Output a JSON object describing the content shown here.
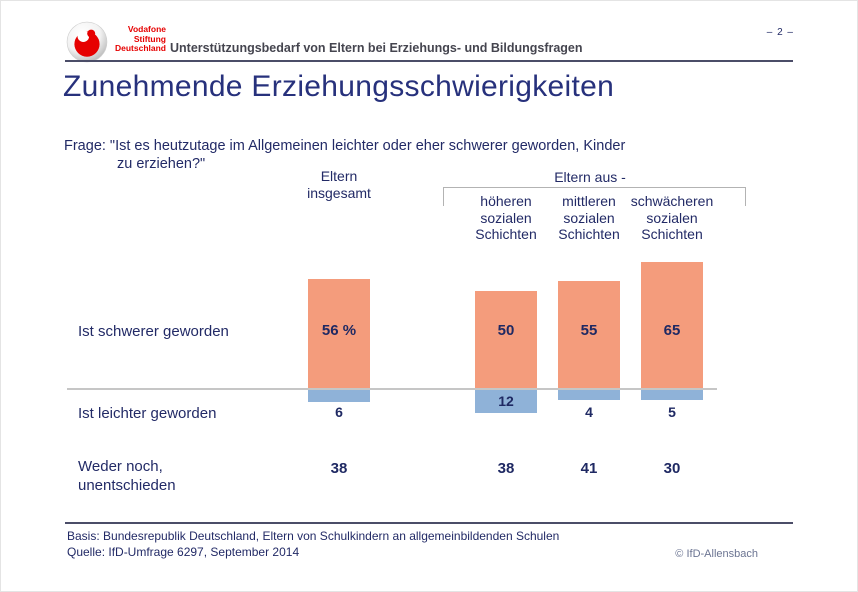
{
  "header": {
    "logo_lines": "Vodafone\nStiftung\nDeutschland",
    "tagline": "Unterstützungsbedarf von Eltern bei Erziehungs- und Bildungsfragen",
    "page_number": "– 2 –"
  },
  "title": "Zunehmende Erziehungsschwierigkeiten",
  "question": {
    "line1": "Frage: \"Ist es heutzutage im Allgemeinen leichter oder eher schwerer geworden, Kinder",
    "line2": "zu erziehen?\""
  },
  "row_labels": {
    "schwerer": "Ist schwerer geworden",
    "leichter": "Ist leichter geworden",
    "weder": "Weder noch,\nunentschieden"
  },
  "chart_data": {
    "type": "bar",
    "unit": "percent",
    "title": "Zunehmende Erziehungsschwierigkeiten",
    "categories": [
      "Eltern insgesamt",
      "Eltern aus höheren sozialen Schichten",
      "Eltern aus mittleren sozialen Schichten",
      "Eltern aus schwächeren sozialen Schichten"
    ],
    "column_headers": [
      "Eltern\ninsgesamt",
      "höheren\nsozialen\nSchichten",
      "mittleren\nsozialen\nSchichten",
      "schwächeren\nsozialen\nSchichten"
    ],
    "group_header": "Eltern aus -",
    "series": [
      {
        "name": "Ist schwerer geworden",
        "values": [
          56,
          50,
          55,
          65
        ],
        "labels": [
          "56 %",
          "50",
          "55",
          "65"
        ],
        "color": "#F49C7C",
        "direction": "up"
      },
      {
        "name": "Ist leichter geworden",
        "values": [
          6,
          12,
          4,
          5
        ],
        "labels": [
          "6",
          "12",
          "4",
          "5"
        ],
        "color": "#8FB2D8",
        "direction": "down"
      },
      {
        "name": "Weder noch, unentschieden",
        "values": [
          38,
          38,
          41,
          30
        ],
        "labels": [
          "38",
          "38",
          "41",
          "30"
        ]
      }
    ],
    "baseline": 0,
    "grid": false,
    "legend_position": "row-labels-left"
  },
  "footer": {
    "basis": "Basis: Bundesrepublik Deutschland, Eltern von Schulkindern an allgemeinbildenden Schulen",
    "quelle": "Quelle: IfD-Umfrage 6297, September 2014",
    "copyright": "© IfD-Allensbach"
  },
  "colors": {
    "title": "#27317C",
    "text_navy": "#222A66",
    "value_navy": "#1F2963",
    "bar_up": "#F49C7C",
    "bar_down": "#8FB2D8",
    "vodafone_red": "#E60000",
    "baseline_gray": "#C6C6C6",
    "bracket_gray": "#B3B3B3",
    "rule_navy": "#4B4D68"
  }
}
